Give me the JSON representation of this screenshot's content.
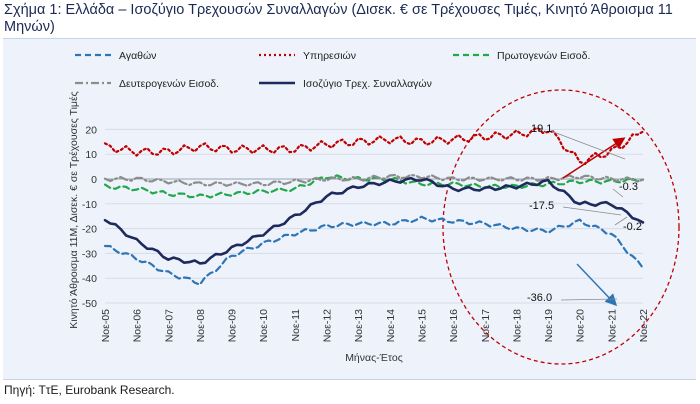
{
  "figure": {
    "title": "Σχήμα 1: Ελλάδα – Ισοζύγιο Τρεχουσών Συναλλαγών (Δισεκ. € σε Τρέχουσες Τιμές, Κινητό Άθροισμα 11 Μηνών)",
    "source": "Πηγή: ΤτΕ, Eurobank Research."
  },
  "chart_data": {
    "type": "line",
    "xlabel": "Μήνας-Έτος",
    "ylabel": "Κινητό Άθροισμα 11Μ, Δισεκ. € σε Τρέχουσες Τιμές",
    "ylim": [
      -50,
      25
    ],
    "yticks": [
      -50,
      -40,
      -30,
      -20,
      -10,
      0,
      10,
      20
    ],
    "categories": [
      "Noε-05",
      "Noε-06",
      "Noε-07",
      "Noε-08",
      "Noε-09",
      "Noε-10",
      "Noε-11",
      "Noε-12",
      "Noε-13",
      "Noε-14",
      "Noε-15",
      "Noε-16",
      "Noε-17",
      "Noε-18",
      "Noε-19",
      "Noε-20",
      "Noε-21",
      "Noε-22"
    ],
    "grid": true,
    "legend_position": "top",
    "series": [
      {
        "name": "Αγαθών",
        "color": "#2e75b6",
        "style": "dashed",
        "values": [
          -27,
          -32,
          -38,
          -42,
          -31,
          -26,
          -22,
          -19,
          -18,
          -18,
          -16,
          -17,
          -18,
          -20,
          -21,
          -17,
          -22,
          -36.0
        ]
      },
      {
        "name": "Υπηρεσιών",
        "color": "#c00000",
        "style": "dotted",
        "values": [
          13,
          11,
          11,
          13,
          12,
          12,
          12,
          14,
          15,
          16,
          15,
          16,
          17,
          18,
          20,
          7,
          11,
          19.1
        ]
      },
      {
        "name": "Πρωτογενών Εισοδ.",
        "color": "#22a84a",
        "style": "dashed",
        "values": [
          -3,
          -4,
          -6,
          -7,
          -6,
          -5,
          -4,
          1,
          0,
          0,
          -2,
          -2,
          -3,
          -3,
          -2,
          -1,
          -1,
          -0.2
        ]
      },
      {
        "name": "Δευτερογενών Εισοδ.",
        "color": "#8c8c8c",
        "style": "dashdot",
        "values": [
          0,
          0,
          -1,
          -2,
          -2,
          -2,
          -1,
          0,
          0,
          1,
          1,
          0,
          0,
          0,
          0,
          1,
          0,
          -0.3
        ]
      },
      {
        "name": "Ισοζύγιο Τρεχ. Συναλλαγών",
        "color": "#1f2a5c",
        "style": "solid",
        "values": [
          -16,
          -25,
          -32,
          -34,
          -28,
          -22,
          -15,
          -7,
          -3,
          -1,
          0,
          -4,
          -4,
          -3,
          -1,
          -10,
          -10,
          -17.5
        ]
      }
    ],
    "annotations": [
      {
        "text": "19.1",
        "value": 19.1,
        "series": "Υπηρεσιών"
      },
      {
        "text": "-0.3",
        "value": -0.3,
        "series": "Δευτερογενών Εισοδ."
      },
      {
        "text": "-0.2",
        "value": -0.2,
        "series": "Πρωτογενών Εισοδ."
      },
      {
        "text": "-17.5",
        "value": -17.5,
        "series": "Ισοζύγιο Τρεχ. Συναλλαγών"
      },
      {
        "text": "-36.0",
        "value": -36.0,
        "series": "Αγαθών"
      }
    ],
    "highlight": {
      "shape": "dashed circle",
      "color": "#c00000"
    },
    "arrows": [
      {
        "color": "#c00000",
        "direction": "up-right"
      },
      {
        "color": "#2e75b6",
        "direction": "down-right"
      }
    ]
  }
}
